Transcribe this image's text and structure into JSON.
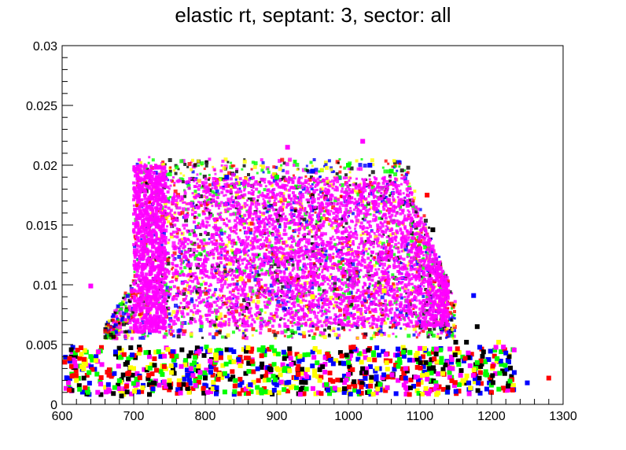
{
  "chart_data": {
    "type": "scatter",
    "title": "elastic rt, septant: 3, sector: all",
    "xlabel": "",
    "ylabel": "",
    "xlim": [
      600,
      1300
    ],
    "ylim": [
      0,
      0.03
    ],
    "x_ticks": [
      600,
      700,
      800,
      900,
      1000,
      1100,
      1200,
      1300
    ],
    "x_tick_labels": [
      "600",
      "700",
      "800",
      "900",
      "1000",
      "1100",
      "1200",
      "1300"
    ],
    "y_ticks": [
      0,
      0.005,
      0.01,
      0.015,
      0.02,
      0.025,
      0.03
    ],
    "y_tick_labels": [
      "0",
      "0.005",
      "0.01",
      "0.015",
      "0.02",
      "0.025",
      "0.03"
    ],
    "grid": false,
    "legend": "none",
    "colors": {
      "magenta": "#ff00ff",
      "yellow": "#ffff00",
      "green": "#00ff00",
      "blue": "#0000ff",
      "red": "#ff0000",
      "black": "#000000"
    },
    "series": [
      {
        "color": "#ff00ff",
        "description_region": "dense core",
        "points": [
          [
            715,
            0.0105
          ],
          [
            720,
            0.012
          ],
          [
            705,
            0.015
          ],
          [
            730,
            0.009
          ],
          [
            760,
            0.011
          ],
          [
            800,
            0.012
          ],
          [
            850,
            0.011
          ],
          [
            900,
            0.012
          ],
          [
            950,
            0.011
          ],
          [
            1000,
            0.012
          ],
          [
            1050,
            0.011
          ],
          [
            1100,
            0.0095
          ],
          [
            1120,
            0.0085
          ],
          [
            1020,
            0.022
          ],
          [
            915,
            0.0215
          ],
          [
            640,
            0.0099
          ],
          [
            1000,
            0.0025
          ],
          [
            780,
            0.003
          ],
          [
            1080,
            0.003
          ]
        ]
      },
      {
        "color": "#ffff00",
        "points": [
          [
            700,
            0.003
          ],
          [
            750,
            0.002
          ],
          [
            820,
            0.0025
          ],
          [
            900,
            0.003
          ],
          [
            960,
            0.002
          ],
          [
            1040,
            0.003
          ],
          [
            1110,
            0.0025
          ],
          [
            1160,
            0.002
          ],
          [
            1210,
            0.0052
          ],
          [
            620,
            0.002
          ],
          [
            850,
            0.0105
          ],
          [
            950,
            0.009
          ],
          [
            1050,
            0.0095
          ]
        ]
      },
      {
        "color": "#00ff00",
        "points": [
          [
            640,
            0.004
          ],
          [
            740,
            0.0025
          ],
          [
            880,
            0.0045
          ],
          [
            1000,
            0.0035
          ],
          [
            1130,
            0.0035
          ],
          [
            1180,
            0.0035
          ],
          [
            900,
            0.019
          ],
          [
            1000,
            0.02
          ],
          [
            1060,
            0.0195
          ]
        ]
      },
      {
        "color": "#0000ff",
        "points": [
          [
            1175,
            0.0091
          ],
          [
            1220,
            0.0043
          ],
          [
            1250,
            0.0018
          ],
          [
            1080,
            0.0022
          ],
          [
            830,
            0.019
          ],
          [
            950,
            0.0195
          ],
          [
            1030,
            0.02
          ]
        ]
      },
      {
        "color": "#ff0000",
        "points": [
          [
            1280,
            0.0022
          ],
          [
            1200,
            0.001
          ],
          [
            1120,
            0.0038
          ],
          [
            930,
            0.0025
          ],
          [
            690,
            0.0015
          ],
          [
            1110,
            0.0175
          ],
          [
            610,
            0.0012
          ]
        ]
      },
      {
        "color": "#000000",
        "points": [
          [
            683,
            0.0007
          ],
          [
            1118,
            0.0146
          ],
          [
            1180,
            0.0065
          ],
          [
            1165,
            0.0052
          ],
          [
            1150,
            0.0052
          ],
          [
            960,
            0.0029
          ],
          [
            800,
            0.0022
          ]
        ]
      }
    ]
  }
}
